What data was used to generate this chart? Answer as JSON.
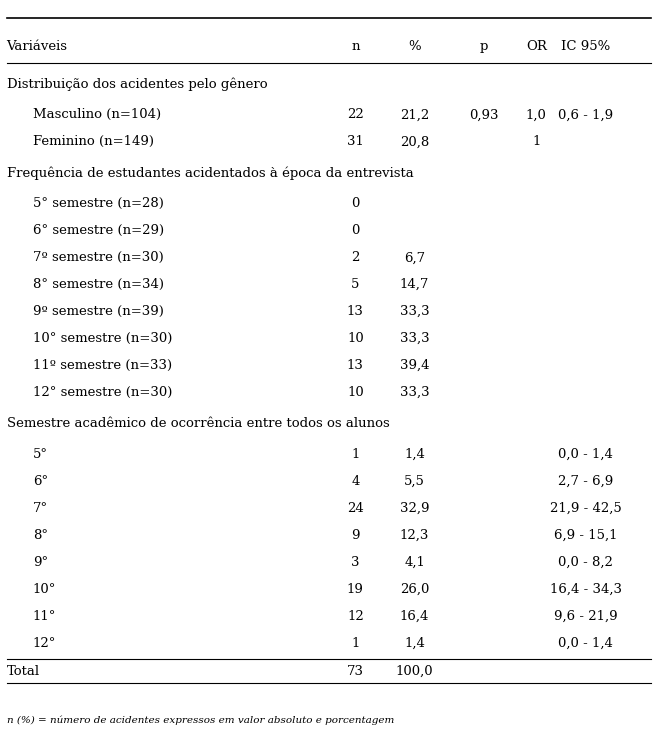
{
  "header": [
    "Variáveis",
    "n",
    "%",
    "p",
    "OR",
    "IC 95%"
  ],
  "footnote": "n (%) = número de acidentes expressos em valor absoluto e porcentagem",
  "bg_color": "#ffffff",
  "text_color": "#000000",
  "rows": [
    {
      "type": "section",
      "label": "Distribuição dos acidentes pelo gênero"
    },
    {
      "type": "data",
      "indent": 1,
      "label": "Masculino (n=104)",
      "n": "22",
      "pct": "21,2",
      "p": "0,93",
      "or": "1,0",
      "ic": "0,6 - 1,9"
    },
    {
      "type": "data",
      "indent": 1,
      "label": "Feminino (n=149)",
      "n": "31",
      "pct": "20,8",
      "p": "",
      "or": "1",
      "ic": ""
    },
    {
      "type": "section",
      "label": "Frequência de estudantes acidentados à época da entrevista"
    },
    {
      "type": "data",
      "indent": 1,
      "label": "5° semestre (n=28)",
      "n": "0",
      "pct": "",
      "p": "",
      "or": "",
      "ic": ""
    },
    {
      "type": "data",
      "indent": 1,
      "label": "6° semestre (n=29)",
      "n": "0",
      "pct": "",
      "p": "",
      "or": "",
      "ic": ""
    },
    {
      "type": "data",
      "indent": 1,
      "label": "7º semestre (n=30)",
      "n": "2",
      "pct": "6,7",
      "p": "",
      "or": "",
      "ic": ""
    },
    {
      "type": "data",
      "indent": 1,
      "label": "8° semestre (n=34)",
      "n": "5",
      "pct": "14,7",
      "p": "",
      "or": "",
      "ic": ""
    },
    {
      "type": "data",
      "indent": 1,
      "label": "9º semestre (n=39)",
      "n": "13",
      "pct": "33,3",
      "p": "",
      "or": "",
      "ic": ""
    },
    {
      "type": "data",
      "indent": 1,
      "label": "10° semestre (n=30)",
      "n": "10",
      "pct": "33,3",
      "p": "",
      "or": "",
      "ic": ""
    },
    {
      "type": "data",
      "indent": 1,
      "label": "11º semestre (n=33)",
      "n": "13",
      "pct": "39,4",
      "p": "",
      "or": "",
      "ic": ""
    },
    {
      "type": "data",
      "indent": 1,
      "label": "12° semestre (n=30)",
      "n": "10",
      "pct": "33,3",
      "p": "",
      "or": "",
      "ic": ""
    },
    {
      "type": "section",
      "label": "Semestre acadêmico de ocorrência entre todos os alunos"
    },
    {
      "type": "data",
      "indent": 1,
      "label": "5°",
      "n": "1",
      "pct": "1,4",
      "p": "",
      "or": "",
      "ic": "0,0 - 1,4"
    },
    {
      "type": "data",
      "indent": 1,
      "label": "6°",
      "n": "4",
      "pct": "5,5",
      "p": "",
      "or": "",
      "ic": "2,7 - 6,9"
    },
    {
      "type": "data",
      "indent": 1,
      "label": "7°",
      "n": "24",
      "pct": "32,9",
      "p": "",
      "or": "",
      "ic": "21,9 - 42,5"
    },
    {
      "type": "data",
      "indent": 1,
      "label": "8°",
      "n": "9",
      "pct": "12,3",
      "p": "",
      "or": "",
      "ic": "6,9 - 15,1"
    },
    {
      "type": "data",
      "indent": 1,
      "label": "9°",
      "n": "3",
      "pct": "4,1",
      "p": "",
      "or": "",
      "ic": "0,0 - 8,2"
    },
    {
      "type": "data",
      "indent": 1,
      "label": "10°",
      "n": "19",
      "pct": "26,0",
      "p": "",
      "or": "",
      "ic": "16,4 - 34,3"
    },
    {
      "type": "data",
      "indent": 1,
      "label": "11°",
      "n": "12",
      "pct": "16,4",
      "p": "",
      "or": "",
      "ic": "9,6 - 21,9"
    },
    {
      "type": "data",
      "indent": 1,
      "label": "12°",
      "n": "1",
      "pct": "1,4",
      "p": "",
      "or": "",
      "ic": "0,0 - 1,4"
    },
    {
      "type": "total",
      "label": "Total",
      "n": "73",
      "pct": "100,0"
    }
  ],
  "col_positions": {
    "label": 0.01,
    "n": 0.54,
    "pct": 0.63,
    "p": 0.735,
    "or": 0.815,
    "ic": 0.89
  },
  "indent_size": 0.04,
  "fontsize": 9.5,
  "header_fontsize": 9.5
}
